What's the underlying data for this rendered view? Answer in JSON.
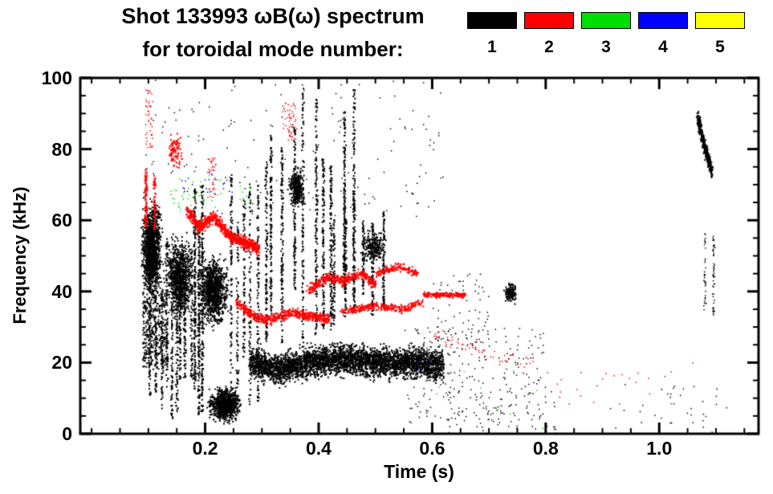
{
  "chart_data": {
    "type": "scatter",
    "title": "Shot 133993 ωB(ω) spectrum",
    "subtitle": "for toroidal mode number:",
    "xlabel": "Time (s)",
    "ylabel": "Frequency (kHz)",
    "xlim": [
      -0.02,
      1.175
    ],
    "ylim": [
      0,
      100
    ],
    "x_ticks": {
      "values": [
        0.2,
        0.4,
        0.6,
        0.8,
        1.0
      ],
      "labels": [
        "0.2",
        "0.4",
        "0.6",
        "0.8",
        "1.0"
      ]
    },
    "y_ticks": {
      "values": [
        0,
        20,
        40,
        60,
        80,
        100
      ],
      "labels": [
        "0",
        "20",
        "40",
        "60",
        "80",
        "100"
      ]
    },
    "x_minor_step": 0.05,
    "y_minor_step": 5,
    "grid": false,
    "legend_position": "top-right",
    "modes": [
      {
        "mode": 1,
        "label": "1",
        "color": "#000000"
      },
      {
        "mode": 2,
        "label": "2",
        "color": "#ff0000"
      },
      {
        "mode": 3,
        "label": "3",
        "color": "#00dd00"
      },
      {
        "mode": 4,
        "label": "4",
        "color": "#0000ff"
      },
      {
        "mode": 5,
        "label": "5",
        "color": "#ffff00"
      }
    ],
    "clusters": [
      {
        "mode": 1,
        "shape": "blob",
        "t": [
          0.085,
          0.128
        ],
        "f": [
          36,
          68
        ],
        "n": 1300,
        "size": 2
      },
      {
        "mode": 1,
        "shape": "box",
        "t": [
          0.09,
          0.135
        ],
        "f": [
          18,
          40
        ],
        "n": 350,
        "size": 2
      },
      {
        "mode": 1,
        "shape": "streaks",
        "t": [
          0.1,
          0.18
        ],
        "f": [
          2,
          58
        ],
        "k": 9,
        "n": 700,
        "size": 2
      },
      {
        "mode": 1,
        "shape": "blob",
        "t": [
          0.125,
          0.185
        ],
        "f": [
          30,
          58
        ],
        "n": 900,
        "size": 2
      },
      {
        "mode": 1,
        "shape": "streaks",
        "t": [
          0.178,
          0.2
        ],
        "f": [
          5,
          88
        ],
        "k": 3,
        "n": 550,
        "size": 2
      },
      {
        "mode": 1,
        "shape": "blob",
        "t": [
          0.185,
          0.245
        ],
        "f": [
          28,
          52
        ],
        "n": 1000,
        "size": 2
      },
      {
        "mode": 1,
        "shape": "blob",
        "t": [
          0.2,
          0.27
        ],
        "f": [
          2,
          14
        ],
        "n": 900,
        "size": 2
      },
      {
        "mode": 1,
        "shape": "streaks",
        "t": [
          0.24,
          0.3
        ],
        "f": [
          5,
          75
        ],
        "k": 5,
        "n": 450,
        "size": 2
      },
      {
        "mode": 1,
        "shape": "path",
        "pts": [
          [
            0.28,
            20
          ],
          [
            0.33,
            18
          ],
          [
            0.38,
            20
          ],
          [
            0.44,
            21
          ],
          [
            0.5,
            20
          ],
          [
            0.56,
            20
          ],
          [
            0.62,
            19
          ]
        ],
        "spread": 6,
        "n": 3800,
        "size": 2
      },
      {
        "mode": 1,
        "shape": "streaks",
        "t": [
          0.295,
          0.47
        ],
        "f": [
          22,
          99
        ],
        "k": 10,
        "n": 1300,
        "size": 2
      },
      {
        "mode": 1,
        "shape": "blob",
        "t": [
          0.345,
          0.378
        ],
        "f": [
          62,
          76
        ],
        "n": 300,
        "size": 2
      },
      {
        "mode": 1,
        "shape": "streaks",
        "t": [
          0.42,
          0.52
        ],
        "f": [
          28,
          72
        ],
        "k": 6,
        "n": 450,
        "size": 2
      },
      {
        "mode": 1,
        "shape": "blob",
        "t": [
          0.47,
          0.525
        ],
        "f": [
          47,
          58
        ],
        "n": 220,
        "size": 2
      },
      {
        "mode": 1,
        "shape": "box",
        "t": [
          0.55,
          0.8
        ],
        "f": [
          3,
          30
        ],
        "n": 260,
        "size": 1.5
      },
      {
        "mode": 1,
        "shape": "box",
        "t": [
          0.6,
          0.7
        ],
        "f": [
          25,
          45
        ],
        "n": 70,
        "size": 1.5
      },
      {
        "mode": 1,
        "shape": "blob",
        "t": [
          0.725,
          0.752
        ],
        "f": [
          36,
          43
        ],
        "n": 140,
        "size": 2
      },
      {
        "mode": 1,
        "shape": "path",
        "pts": [
          [
            1.068,
            89
          ],
          [
            1.076,
            83
          ],
          [
            1.085,
            78
          ],
          [
            1.092,
            74
          ]
        ],
        "spread": 2.5,
        "n": 380,
        "size": 2
      },
      {
        "mode": 1,
        "shape": "streaks",
        "t": [
          1.078,
          1.1
        ],
        "f": [
          28,
          58
        ],
        "k": 2,
        "n": 90,
        "size": 1.5
      },
      {
        "mode": 1,
        "shape": "box",
        "t": [
          0.09,
          0.62
        ],
        "f": [
          60,
          100
        ],
        "n": 160,
        "size": 1.5
      },
      {
        "mode": 1,
        "shape": "box",
        "t": [
          0.62,
          0.82
        ],
        "f": [
          0,
          12
        ],
        "n": 60,
        "size": 1.5
      },
      {
        "mode": 1,
        "shape": "box",
        "t": [
          0.9,
          1.12
        ],
        "f": [
          0,
          14
        ],
        "n": 35,
        "size": 1.5
      },
      {
        "mode": 2,
        "shape": "streaks",
        "t": [
          0.092,
          0.115
        ],
        "f": [
          55,
          78
        ],
        "k": 2,
        "n": 160,
        "size": 2
      },
      {
        "mode": 2,
        "shape": "box",
        "t": [
          0.095,
          0.108
        ],
        "f": [
          80,
          97
        ],
        "n": 45,
        "size": 1.5
      },
      {
        "mode": 2,
        "shape": "blob",
        "t": [
          0.13,
          0.162
        ],
        "f": [
          73,
          86
        ],
        "n": 90,
        "size": 2
      },
      {
        "mode": 2,
        "shape": "box",
        "t": [
          0.205,
          0.218
        ],
        "f": [
          66,
          78
        ],
        "n": 35,
        "size": 1.5
      },
      {
        "mode": 2,
        "shape": "path",
        "pts": [
          [
            0.168,
            63
          ],
          [
            0.19,
            58
          ],
          [
            0.215,
            61
          ],
          [
            0.24,
            56
          ],
          [
            0.265,
            54
          ],
          [
            0.295,
            52
          ]
        ],
        "spread": 2.5,
        "n": 800,
        "size": 2
      },
      {
        "mode": 2,
        "shape": "path",
        "pts": [
          [
            0.255,
            37
          ],
          [
            0.285,
            33
          ],
          [
            0.315,
            32
          ],
          [
            0.35,
            34
          ],
          [
            0.385,
            33
          ],
          [
            0.42,
            32
          ]
        ],
        "spread": 2,
        "n": 550,
        "size": 2
      },
      {
        "mode": 2,
        "shape": "path",
        "pts": [
          [
            0.38,
            40
          ],
          [
            0.415,
            44
          ],
          [
            0.445,
            43
          ],
          [
            0.475,
            45
          ],
          [
            0.5,
            42
          ]
        ],
        "spread": 2,
        "n": 380,
        "size": 2
      },
      {
        "mode": 2,
        "shape": "path",
        "pts": [
          [
            0.44,
            34
          ],
          [
            0.5,
            36
          ],
          [
            0.55,
            35
          ],
          [
            0.585,
            37
          ]
        ],
        "spread": 1.5,
        "n": 280,
        "size": 2
      },
      {
        "mode": 2,
        "shape": "path",
        "pts": [
          [
            0.5,
            45
          ],
          [
            0.54,
            47
          ],
          [
            0.575,
            45
          ]
        ],
        "spread": 1.5,
        "n": 160,
        "size": 2
      },
      {
        "mode": 2,
        "shape": "path",
        "pts": [
          [
            0.585,
            39
          ],
          [
            0.625,
            39
          ],
          [
            0.66,
            39
          ]
        ],
        "spread": 1,
        "n": 200,
        "size": 2
      },
      {
        "mode": 2,
        "shape": "path",
        "pts": [
          [
            0.6,
            28
          ],
          [
            0.7,
            22
          ],
          [
            0.78,
            19
          ]
        ],
        "spread": 3,
        "n": 55,
        "size": 1.5
      },
      {
        "mode": 2,
        "shape": "box",
        "t": [
          0.335,
          0.362
        ],
        "f": [
          82,
          93
        ],
        "n": 55,
        "size": 1.5
      },
      {
        "mode": 2,
        "shape": "box",
        "t": [
          0.8,
          1.06
        ],
        "f": [
          8,
          20
        ],
        "n": 25,
        "size": 1.5
      },
      {
        "mode": 3,
        "shape": "box",
        "t": [
          0.138,
          0.235
        ],
        "f": [
          62,
          73
        ],
        "n": 40,
        "size": 1.5
      },
      {
        "mode": 3,
        "shape": "box",
        "t": [
          0.26,
          0.285
        ],
        "f": [
          64,
          70
        ],
        "n": 10,
        "size": 1.5
      },
      {
        "mode": 3,
        "shape": "box",
        "t": [
          0.6,
          0.8
        ],
        "f": [
          1,
          20
        ],
        "n": 10,
        "size": 1.5
      },
      {
        "mode": 4,
        "shape": "box",
        "t": [
          0.155,
          0.25
        ],
        "f": [
          65,
          76
        ],
        "n": 22,
        "size": 1.5
      },
      {
        "mode": 4,
        "shape": "box",
        "t": [
          0.57,
          0.61
        ],
        "f": [
          17,
          22
        ],
        "n": 4,
        "size": 1.5
      }
    ]
  }
}
